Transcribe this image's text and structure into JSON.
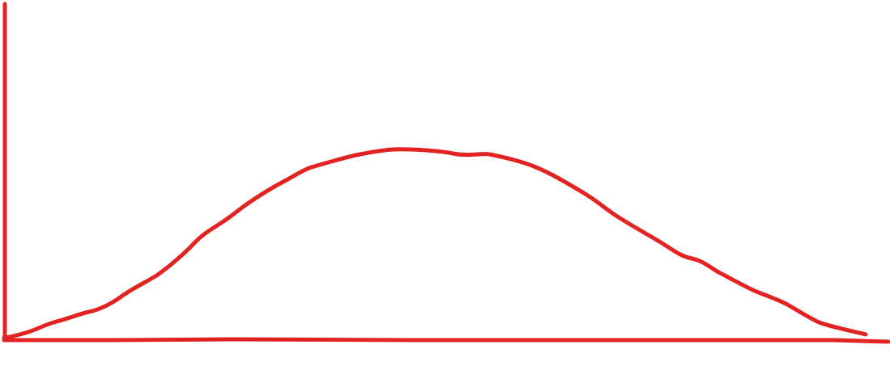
{
  "diagram": {
    "type": "hand-drawn bell curve with axes",
    "stroke_color": "#e32222",
    "background_color": "#ffffff"
  }
}
